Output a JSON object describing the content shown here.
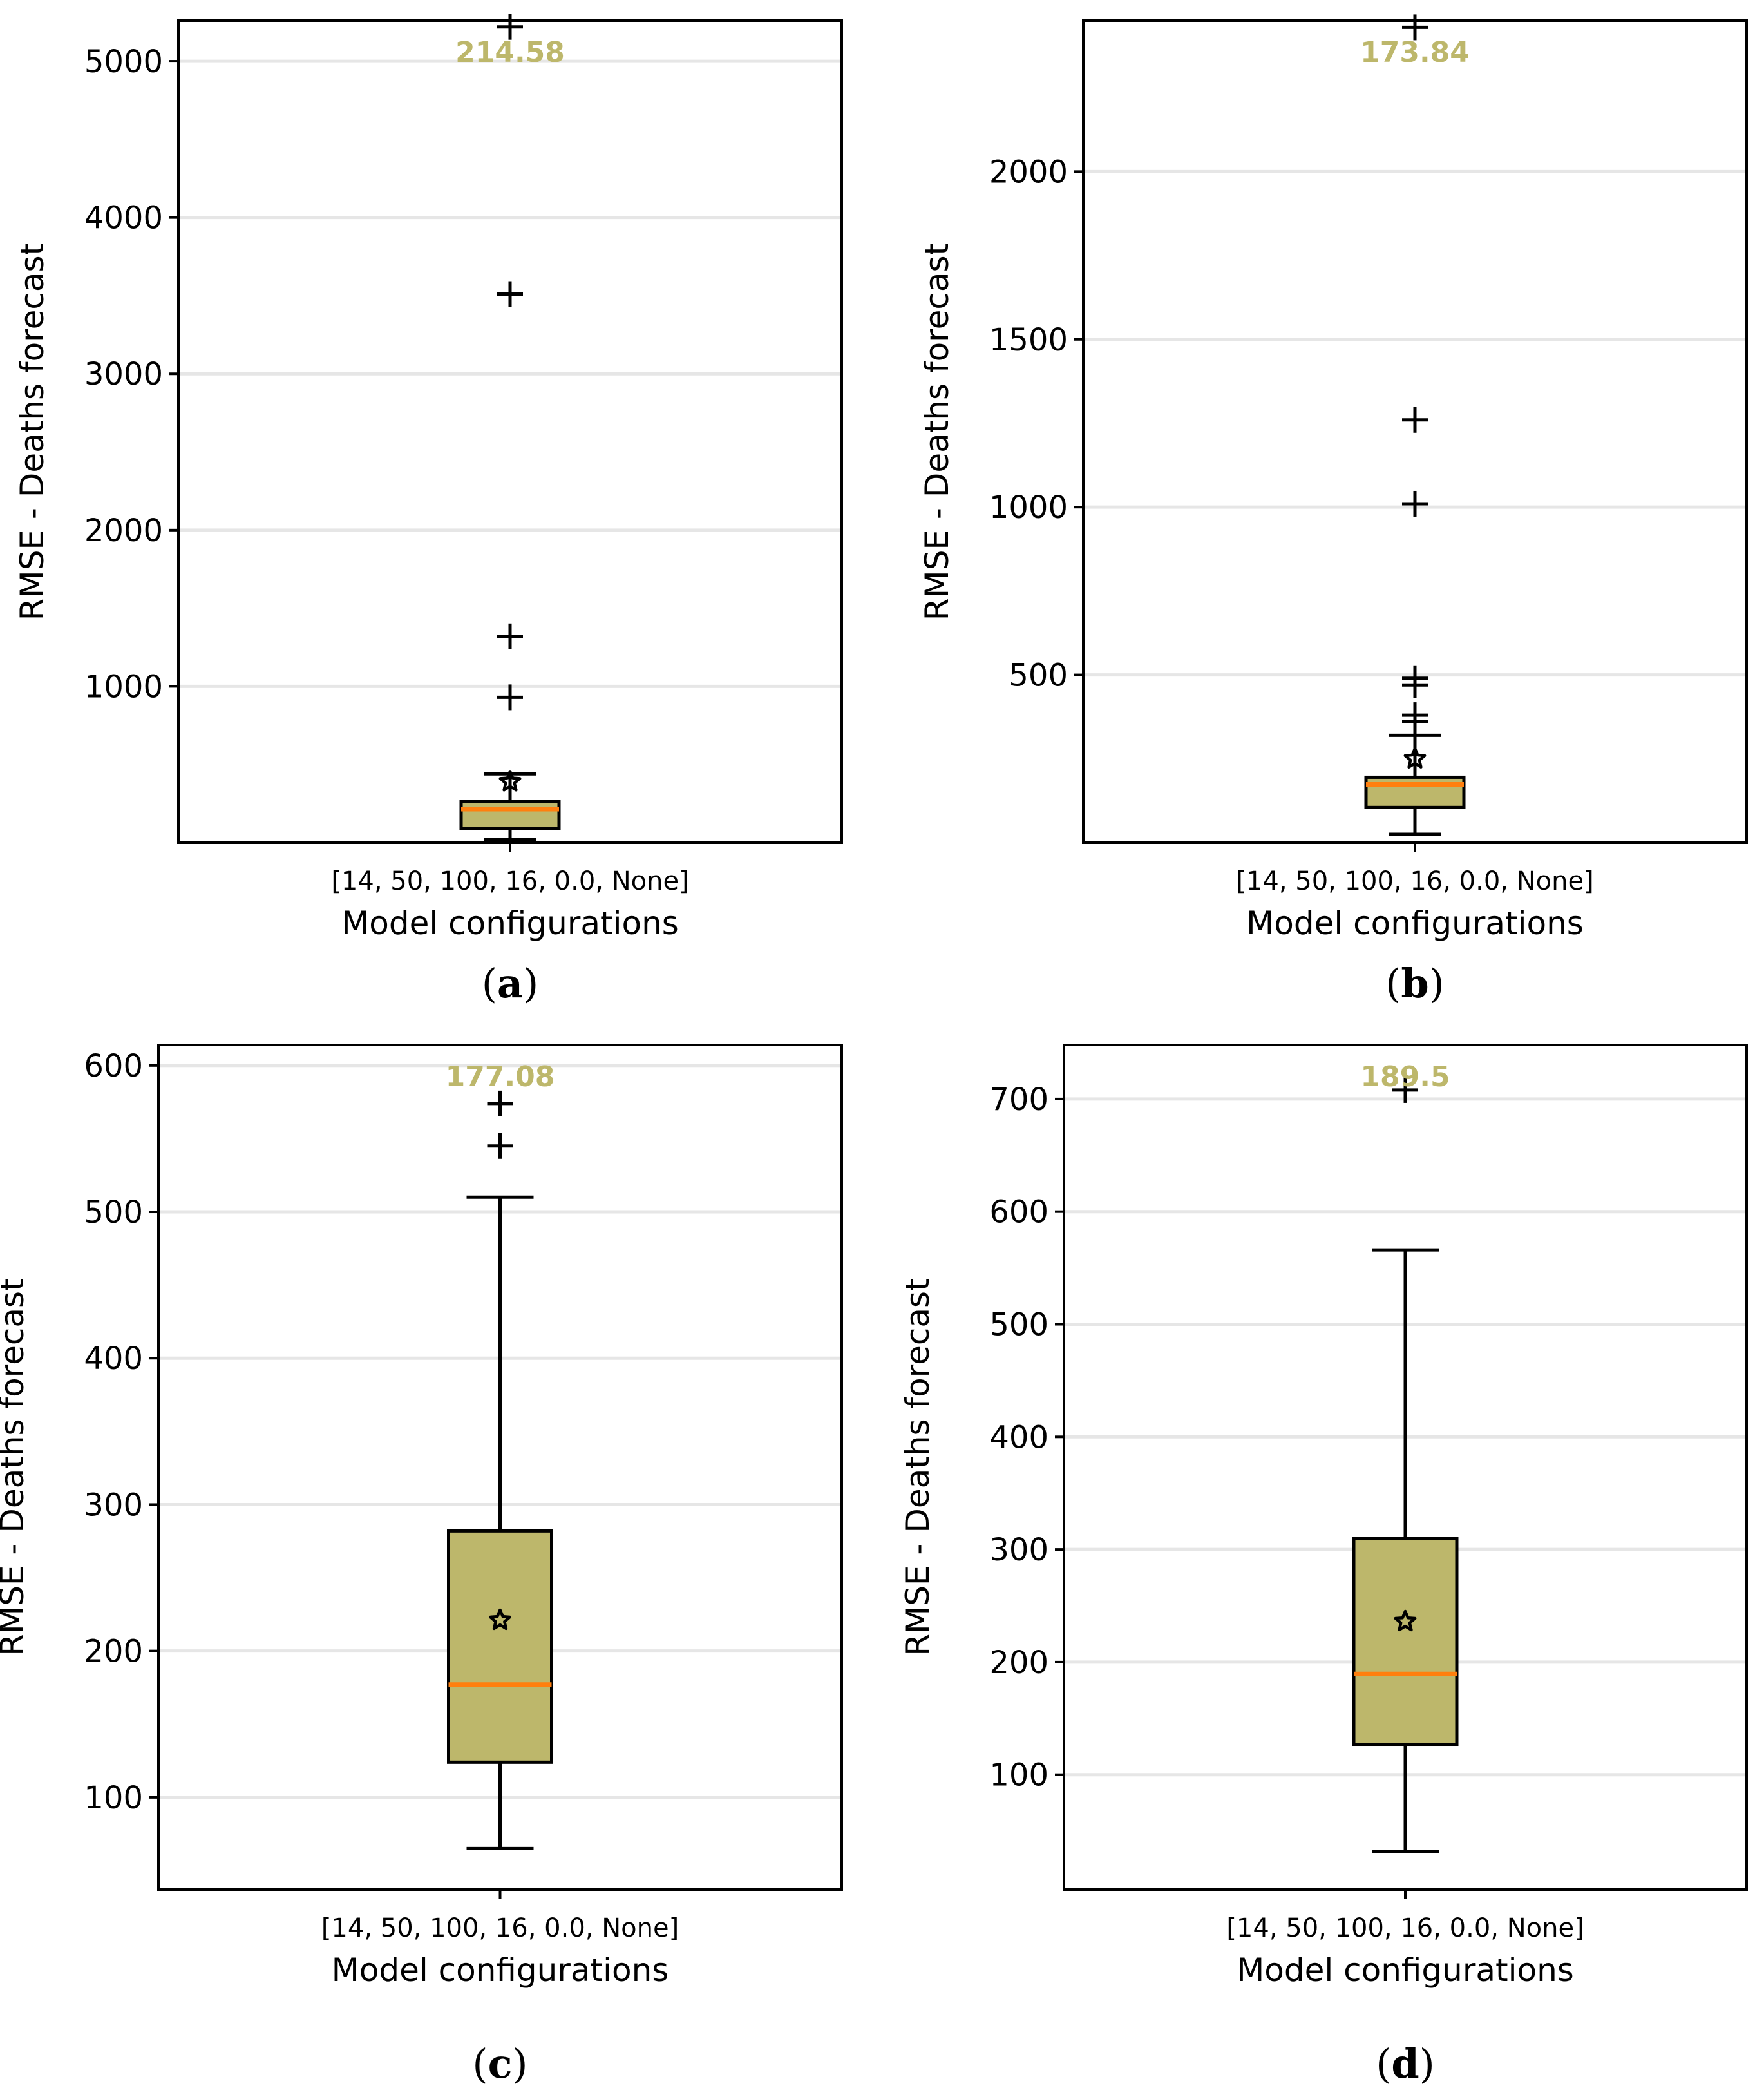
{
  "colors": {
    "box_fill": "#bdb76b",
    "median_line": "#ff7f0e",
    "median_text": "#bdb76b",
    "grid": "#e6e6e6"
  },
  "chart_data": [
    {
      "type": "box",
      "panel_label": "a",
      "ylabel": "RMSE - Deaths forecast",
      "xlabel": "Model configurations",
      "categories": [
        "[14, 50, 100, 16, 0.0, None]"
      ],
      "ylim": [
        0,
        5260
      ],
      "yticks": [
        1000,
        2000,
        3000,
        4000,
        5000
      ],
      "grid": true,
      "box": {
        "whislo": 20,
        "q1": 90,
        "median": 214.58,
        "q3": 265,
        "whishi": 440,
        "mean": 390,
        "fliers": [
          930,
          1320,
          3510,
          5220
        ]
      },
      "median_text": "214.58"
    },
    {
      "type": "box",
      "panel_label": "b",
      "ylabel": "RMSE - Deaths forecast",
      "xlabel": "Model configurations",
      "categories": [
        "[14, 50, 100, 16, 0.0, None]"
      ],
      "ylim": [
        0,
        2450
      ],
      "yticks": [
        500,
        1000,
        1500,
        2000
      ],
      "grid": true,
      "box": {
        "whislo": 25,
        "q1": 105,
        "median": 173.84,
        "q3": 195,
        "whishi": 320,
        "mean": 250,
        "fliers": [
          360,
          380,
          470,
          490,
          1010,
          1260,
          2430
        ]
      },
      "median_text": "173.84"
    },
    {
      "type": "box",
      "panel_label": "c",
      "ylabel": "RMSE - Deaths forecast",
      "xlabel": "Model configurations",
      "categories": [
        "[14, 50, 100, 16, 0.0, None]"
      ],
      "ylim": [
        37,
        614
      ],
      "yticks": [
        100,
        200,
        300,
        400,
        500,
        600
      ],
      "grid": true,
      "box": {
        "whislo": 65,
        "q1": 124,
        "median": 177.08,
        "q3": 282,
        "whishi": 510,
        "mean": 221,
        "fliers": [
          545,
          574
        ]
      },
      "median_text": "177.08"
    },
    {
      "type": "box",
      "panel_label": "d",
      "ylabel": "RMSE - Deaths forecast",
      "xlabel": "Model configurations",
      "categories": [
        "[14, 50, 100, 16, 0.0, None]"
      ],
      "ylim": [
        -2,
        748
      ],
      "yticks": [
        100,
        200,
        300,
        400,
        500,
        600,
        700
      ],
      "grid": true,
      "box": {
        "whislo": 32,
        "q1": 127,
        "median": 189.5,
        "q3": 310,
        "whishi": 566,
        "mean": 236,
        "fliers": [
          708
        ]
      },
      "median_text": "189.5"
    }
  ]
}
